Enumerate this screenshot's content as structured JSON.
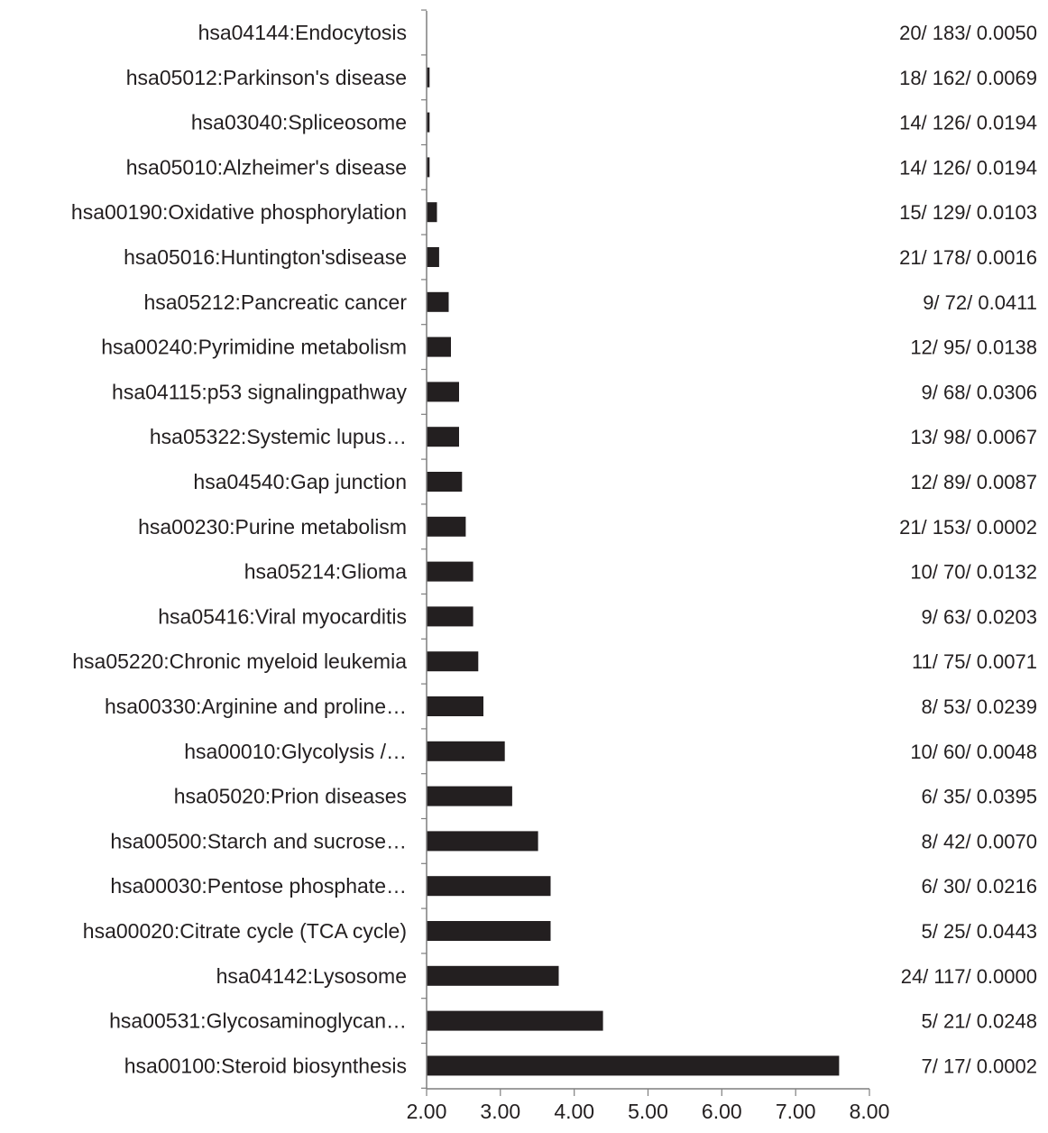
{
  "colors": {
    "bar": "#231f20",
    "axis": "#7f7f7f",
    "text": "#231f20"
  },
  "chart_data": {
    "type": "bar",
    "orientation": "horizontal",
    "xlim": [
      2.0,
      8.0
    ],
    "xticks": [
      "2.00",
      "3.00",
      "4.00",
      "5.00",
      "6.00",
      "7.00",
      "8.00"
    ],
    "grid": false,
    "categories": [
      "hsa04144:Endocytosis",
      "hsa05012:Parkinson's disease",
      "hsa03040:Spliceosome",
      "hsa05010:Alzheimer's disease",
      "hsa00190:Oxidative phosphorylation",
      "hsa05016:Huntington'sdisease",
      "hsa05212:Pancreatic cancer",
      "hsa00240:Pyrimidine metabolism",
      "hsa04115:p53 signalingpathway",
      "hsa05322:Systemic lupus…",
      "hsa04540:Gap junction",
      "hsa00230:Purine metabolism",
      "hsa05214:Glioma",
      "hsa05416:Viral myocarditis",
      "hsa05220:Chronic myeloid leukemia",
      "hsa00330:Arginine and proline…",
      "hsa00010:Glycolysis /…",
      "hsa05020:Prion diseases",
      "hsa00500:Starch and sucrose…",
      "hsa00030:Pentose phosphate…",
      "hsa00020:Citrate cycle (TCA cycle)",
      "hsa04142:Lysosome",
      "hsa00531:Glycosaminoglycan…",
      "hsa00100:Steroid biosynthesis"
    ],
    "values": [
      2.0,
      2.04,
      2.04,
      2.04,
      2.14,
      2.17,
      2.3,
      2.33,
      2.44,
      2.44,
      2.48,
      2.53,
      2.63,
      2.63,
      2.7,
      2.77,
      3.06,
      3.16,
      3.51,
      3.68,
      3.68,
      3.79,
      4.39,
      7.59
    ],
    "annotations": [
      "20/ 183/ 0.0050",
      "18/ 162/ 0.0069",
      "14/ 126/ 0.0194",
      "14/ 126/ 0.0194",
      "15/ 129/ 0.0103",
      "21/ 178/ 0.0016",
      "9/ 72/ 0.0411",
      "12/ 95/ 0.0138",
      "9/ 68/ 0.0306",
      "13/ 98/ 0.0067",
      "12/ 89/ 0.0087",
      "21/ 153/ 0.0002",
      "10/ 70/ 0.0132",
      "9/ 63/ 0.0203",
      "11/ 75/ 0.0071",
      "8/ 53/ 0.0239",
      "10/ 60/ 0.0048",
      "6/ 35/ 0.0395",
      "8/ 42/ 0.0070",
      "6/ 30/ 0.0216",
      "5/ 25/ 0.0443",
      "24/ 117/ 0.0000",
      "5/ 21/ 0.0248",
      "7/ 17/ 0.0002"
    ]
  }
}
